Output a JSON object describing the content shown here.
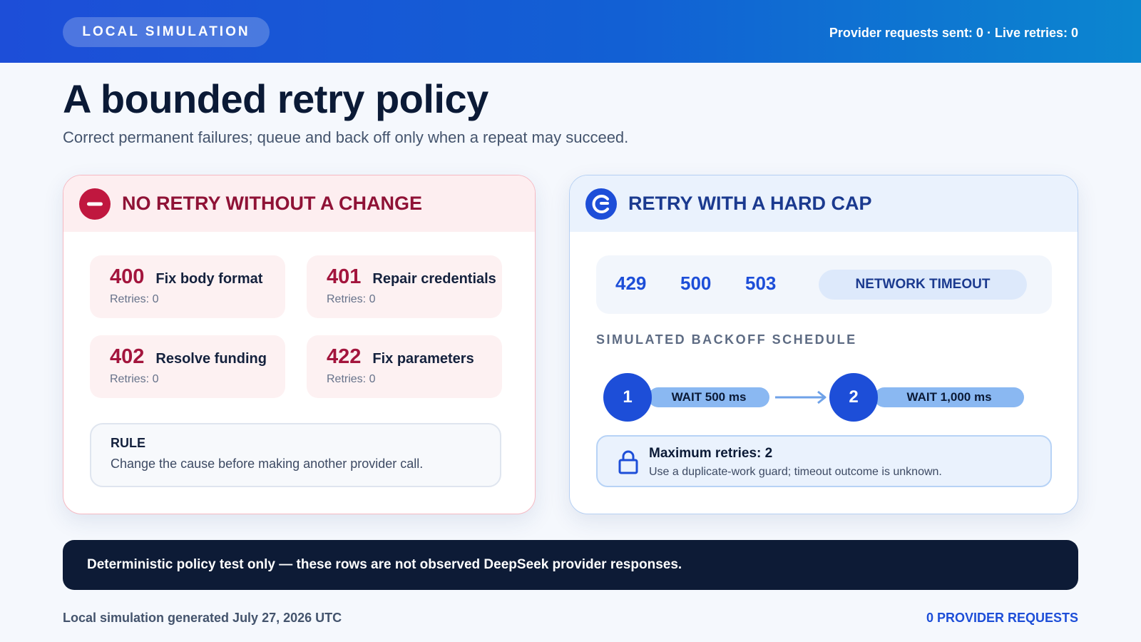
{
  "header": {
    "badge": "LOCAL SIMULATION",
    "status": "Provider requests sent: 0 · Live retries: 0"
  },
  "title": "A bounded retry policy",
  "subtitle": "Correct permanent failures; queue and back off only when a repeat may succeed.",
  "no_retry": {
    "icon": "no-entry-icon",
    "title": "NO RETRY WITHOUT A CHANGE",
    "codes": [
      {
        "code": "400",
        "label": "Fix body format",
        "retries": "Retries: 0"
      },
      {
        "code": "401",
        "label": "Repair credentials",
        "retries": "Retries: 0"
      },
      {
        "code": "402",
        "label": "Resolve funding",
        "retries": "Retries: 0"
      },
      {
        "code": "422",
        "label": "Fix parameters",
        "retries": "Retries: 0"
      }
    ],
    "rule_title": "RULE",
    "rule_text": "Change the cause before making another provider call."
  },
  "retry": {
    "icon": "retry-icon",
    "title": "RETRY WITH A HARD CAP",
    "codes": [
      "429",
      "500",
      "503"
    ],
    "network": "NETWORK TIMEOUT",
    "schedule_title": "SIMULATED BACKOFF SCHEDULE",
    "steps": [
      {
        "num": "1",
        "wait": "WAIT 500 ms"
      },
      {
        "num": "2",
        "wait": "WAIT 1,000 ms"
      }
    ],
    "max_title": "Maximum retries: 2",
    "max_text": "Use a duplicate-work guard; timeout outcome is unknown."
  },
  "banner": "Deterministic policy test only — these rows are not observed DeepSeek provider responses.",
  "footer": {
    "left": "Local simulation generated July 27, 2026 UTC",
    "right": "0 PROVIDER REQUESTS"
  },
  "colors": {
    "brand": "#1d4ed8",
    "danger": "#a3153d",
    "dark": "#0d1b36"
  }
}
